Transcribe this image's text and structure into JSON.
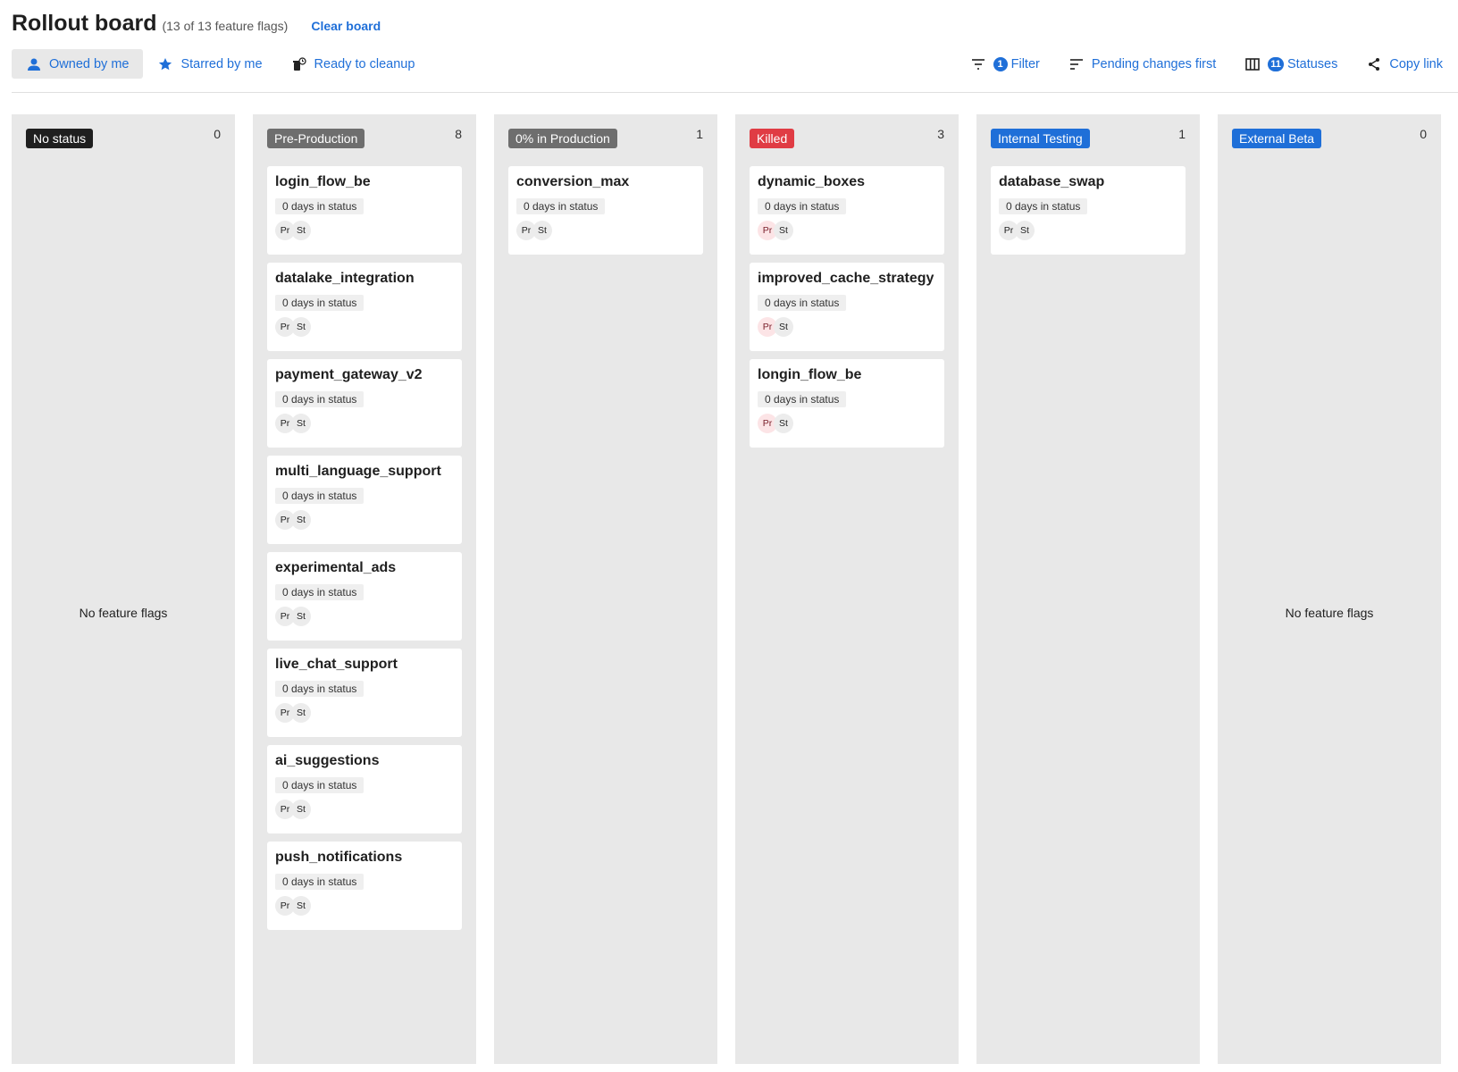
{
  "header": {
    "title": "Rollout board",
    "subtitle": "(13 of 13 feature flags)",
    "clear_label": "Clear board"
  },
  "toolbar": {
    "owned": {
      "label": "Owned by me",
      "icon": "person-icon"
    },
    "starred": {
      "label": "Starred by me",
      "icon": "star-icon"
    },
    "cleanup": {
      "label": "Ready to cleanup",
      "icon": "trash-clock-icon"
    },
    "filter": {
      "label": "Filter",
      "count": "1",
      "icon": "filter-icon"
    },
    "sort": {
      "label": "Pending changes first",
      "icon": "sort-icon"
    },
    "statuses": {
      "label": "Statuses",
      "count": "11",
      "icon": "columns-icon"
    },
    "copy": {
      "label": "Copy link",
      "icon": "share-icon"
    }
  },
  "empty_label": "No feature flags",
  "columns": [
    {
      "status": "No status",
      "color": "#1f1f1f",
      "count": "0",
      "cards": []
    },
    {
      "status": "Pre-Production",
      "color": "#6e6e6e",
      "count": "8",
      "cards": [
        {
          "name": "login_flow_be",
          "days": "0 days in status",
          "avatars": [
            "Pr",
            "St"
          ]
        },
        {
          "name": "datalake_integration",
          "days": "0 days in status",
          "avatars": [
            "Pr",
            "St"
          ]
        },
        {
          "name": "payment_gateway_v2",
          "days": "0 days in status",
          "avatars": [
            "Pr",
            "St"
          ]
        },
        {
          "name": "multi_language_support",
          "days": "0 days in status",
          "avatars": [
            "Pr",
            "St"
          ]
        },
        {
          "name": "experimental_ads",
          "days": "0 days in status",
          "avatars": [
            "Pr",
            "St"
          ]
        },
        {
          "name": "live_chat_support",
          "days": "0 days in status",
          "avatars": [
            "Pr",
            "St"
          ]
        },
        {
          "name": "ai_suggestions",
          "days": "0 days in status",
          "avatars": [
            "Pr",
            "St"
          ]
        },
        {
          "name": "push_notifications",
          "days": "0 days in status",
          "avatars": [
            "Pr",
            "St"
          ]
        }
      ]
    },
    {
      "status": "0% in Production",
      "color": "#6e6e6e",
      "count": "1",
      "cards": [
        {
          "name": "conversion_max",
          "days": "0 days in status",
          "avatars": [
            "Pr",
            "St"
          ]
        }
      ]
    },
    {
      "status": "Killed",
      "color": "#e03c44",
      "count": "3",
      "avatar_pr_color": "#fce4e6",
      "cards": [
        {
          "name": "dynamic_boxes",
          "days": "0 days in status",
          "avatars": [
            "Pr",
            "St"
          ]
        },
        {
          "name": "improved_cache_strategy",
          "days": "0 days in status",
          "avatars": [
            "Pr",
            "St"
          ]
        },
        {
          "name": "longin_flow_be",
          "days": "0 days in status",
          "avatars": [
            "Pr",
            "St"
          ]
        }
      ]
    },
    {
      "status": "Internal Testing",
      "color": "#1f6fd8",
      "count": "1",
      "cards": [
        {
          "name": "database_swap",
          "days": "0 days in status",
          "avatars": [
            "Pr",
            "St"
          ]
        }
      ]
    },
    {
      "status": "External Beta",
      "color": "#1f6fd8",
      "count": "0",
      "cards": []
    }
  ]
}
